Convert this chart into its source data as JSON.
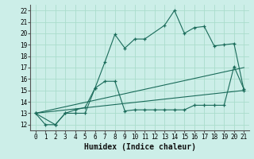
{
  "xlabel": "Humidex (Indice chaleur)",
  "background_color": "#cceee8",
  "grid_color": "#aaddcc",
  "line_color": "#1a6b5a",
  "xlim": [
    -0.5,
    21.5
  ],
  "ylim": [
    11.5,
    22.5
  ],
  "xticks": [
    0,
    1,
    2,
    3,
    4,
    5,
    6,
    7,
    8,
    9,
    10,
    11,
    12,
    13,
    14,
    15,
    16,
    17,
    18,
    19,
    20,
    21
  ],
  "yticks": [
    12,
    13,
    14,
    15,
    16,
    17,
    18,
    19,
    20,
    21,
    22
  ],
  "line1_x": [
    0,
    1,
    2,
    3,
    4,
    5,
    6,
    7,
    8,
    9,
    10,
    11,
    13,
    14,
    15,
    16,
    17,
    18,
    19,
    20,
    21
  ],
  "line1_y": [
    13,
    12,
    12,
    13,
    13,
    13,
    15.2,
    17.5,
    19.9,
    18.7,
    19.5,
    19.5,
    20.7,
    22,
    20,
    20.5,
    20.6,
    18.9,
    19.0,
    19.1,
    15.0
  ],
  "line2_x": [
    0,
    2,
    3,
    4,
    5,
    6,
    7,
    8,
    9,
    10,
    11,
    12,
    13,
    14,
    15,
    16,
    17,
    18,
    19,
    20,
    21
  ],
  "line2_y": [
    13,
    12,
    13,
    13.3,
    13.5,
    15.2,
    15.8,
    15.8,
    13.2,
    13.3,
    13.3,
    13.3,
    13.3,
    13.3,
    13.3,
    13.7,
    13.7,
    13.7,
    13.7,
    17.1,
    15.1
  ],
  "line3_x": [
    0,
    21
  ],
  "line3_y": [
    13,
    15.0
  ],
  "line4_x": [
    0,
    21
  ],
  "line4_y": [
    13,
    17.0
  ],
  "xlabel_fontsize": 7,
  "tick_fontsize": 5.5
}
